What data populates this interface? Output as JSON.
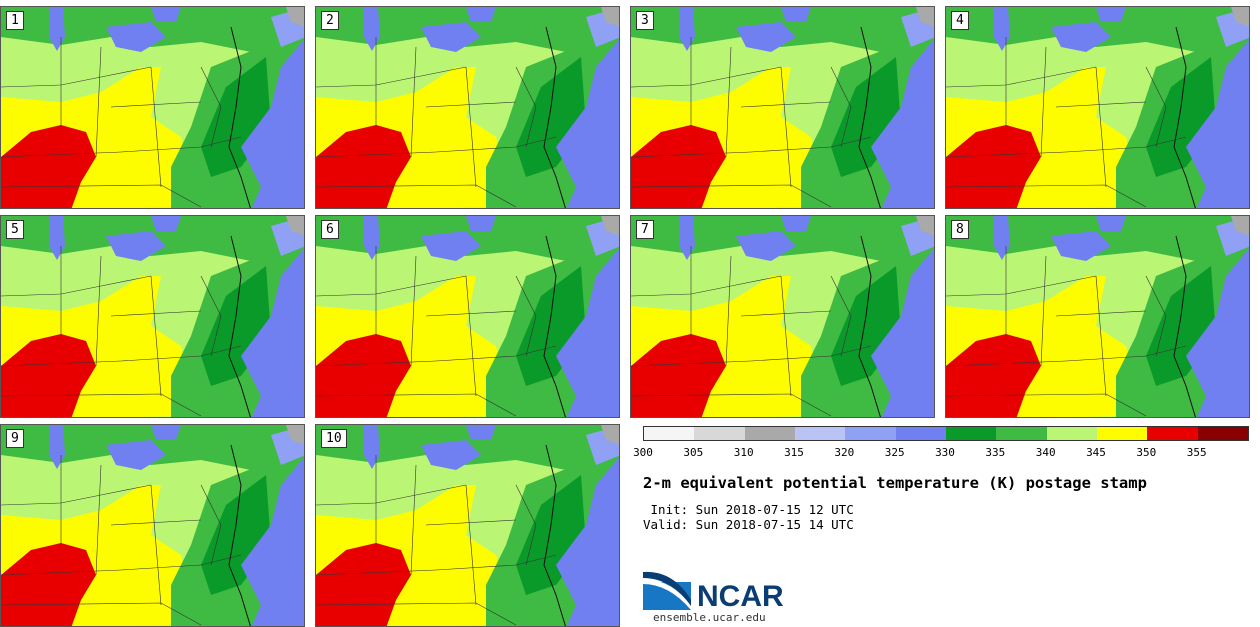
{
  "panels": [
    {
      "label": "1"
    },
    {
      "label": "2"
    },
    {
      "label": "3"
    },
    {
      "label": "4"
    },
    {
      "label": "5"
    },
    {
      "label": "6"
    },
    {
      "label": "7"
    },
    {
      "label": "8"
    },
    {
      "label": "9"
    },
    {
      "label": "10"
    }
  ],
  "colorbar": {
    "colors": [
      "#f5f5f5",
      "#d8d8d8",
      "#a9a9a9",
      "#b9c4f5",
      "#8fa0f5",
      "#7080f0",
      "#0a9a2a",
      "#3fba42",
      "#baf573",
      "#fdfd00",
      "#e80000",
      "#8a0000"
    ],
    "ticks": [
      "300",
      "305",
      "310",
      "315",
      "320",
      "325",
      "330",
      "335",
      "340",
      "345",
      "350",
      "355"
    ]
  },
  "title": "2-m equivalent potential temperature (K) postage stamp",
  "init": " Init: Sun 2018-07-15 12 UTC",
  "valid": "Valid: Sun 2018-07-15 14 UTC",
  "logo": {
    "text": "NCAR",
    "url": "ensemble.ucar.edu"
  }
}
